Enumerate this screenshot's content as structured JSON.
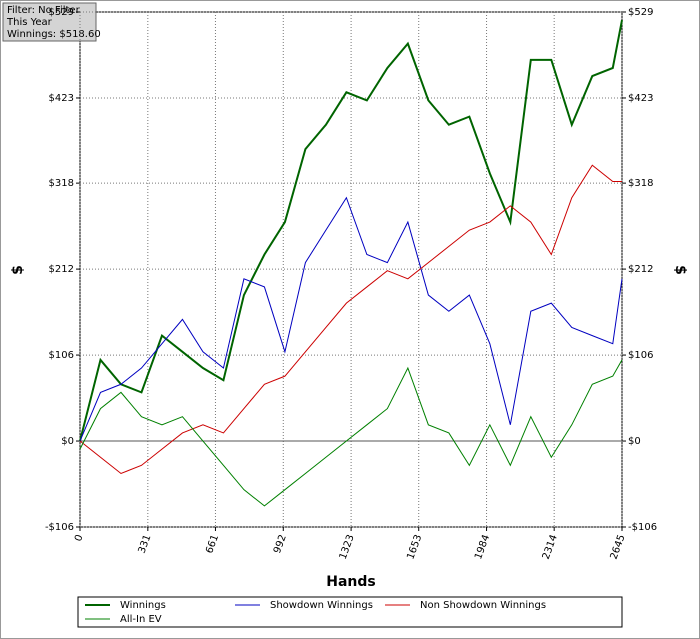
{
  "chart_data": {
    "type": "line",
    "annotations": [
      "Filter: No Filter",
      "This Year",
      "Winnings: $518.60"
    ],
    "xlabel": "Hands",
    "ylabel": "$",
    "y2label": "$",
    "x": [
      0,
      100,
      200,
      300,
      400,
      500,
      600,
      700,
      800,
      900,
      1000,
      1100,
      1200,
      1300,
      1400,
      1500,
      1600,
      1700,
      1800,
      1900,
      2000,
      2100,
      2200,
      2300,
      2400,
      2500,
      2600,
      2645
    ],
    "series": [
      {
        "name": "Winnings",
        "color": "#006400",
        "values": [
          0,
          100,
          70,
          60,
          130,
          110,
          90,
          75,
          180,
          230,
          270,
          360,
          390,
          430,
          420,
          460,
          490,
          420,
          390,
          400,
          330,
          270,
          470,
          470,
          390,
          450,
          460,
          519
        ]
      },
      {
        "name": "Showdown Winnings",
        "color": "#0000c0",
        "values": [
          0,
          60,
          70,
          90,
          120,
          150,
          110,
          90,
          200,
          190,
          110,
          220,
          260,
          300,
          230,
          220,
          270,
          180,
          160,
          180,
          120,
          20,
          160,
          170,
          140,
          130,
          120,
          200
        ]
      },
      {
        "name": "Non Showdown Winnings",
        "color": "#cc0000",
        "values": [
          0,
          -20,
          -40,
          -30,
          -10,
          10,
          20,
          10,
          40,
          70,
          80,
          110,
          140,
          170,
          190,
          210,
          200,
          220,
          240,
          260,
          270,
          290,
          270,
          230,
          300,
          340,
          320,
          320
        ]
      },
      {
        "name": "All-In EV",
        "color": "#008000",
        "values": [
          -10,
          40,
          60,
          30,
          20,
          30,
          0,
          -30,
          -60,
          -80,
          -60,
          -40,
          -20,
          0,
          20,
          40,
          90,
          20,
          10,
          -30,
          20,
          -30,
          30,
          -20,
          20,
          70,
          80,
          100
        ]
      }
    ],
    "xlim": [
      0,
      2645
    ],
    "xticks": [
      0,
      331,
      661,
      992,
      1323,
      1653,
      1984,
      2314,
      2645
    ],
    "ylim": [
      -106,
      529
    ],
    "yticks": [
      {
        "value": -106,
        "label": "-$106"
      },
      {
        "value": 0,
        "label": "$0"
      },
      {
        "value": 106,
        "label": "$106"
      },
      {
        "value": 212,
        "label": "$212"
      },
      {
        "value": 318,
        "label": "$318"
      },
      {
        "value": 423,
        "label": "$423"
      },
      {
        "value": 529,
        "label": "$529"
      }
    ],
    "y2lim": [
      -106,
      529
    ],
    "y2ticks": [
      {
        "value": -106,
        "label": "-$106"
      },
      {
        "value": 0,
        "label": "$0"
      },
      {
        "value": 106,
        "label": "$106"
      },
      {
        "value": 212,
        "label": "$212"
      },
      {
        "value": 318,
        "label": "$318"
      },
      {
        "value": 423,
        "label": "$423"
      },
      {
        "value": 529,
        "label": "$529"
      }
    ],
    "grid": true
  }
}
